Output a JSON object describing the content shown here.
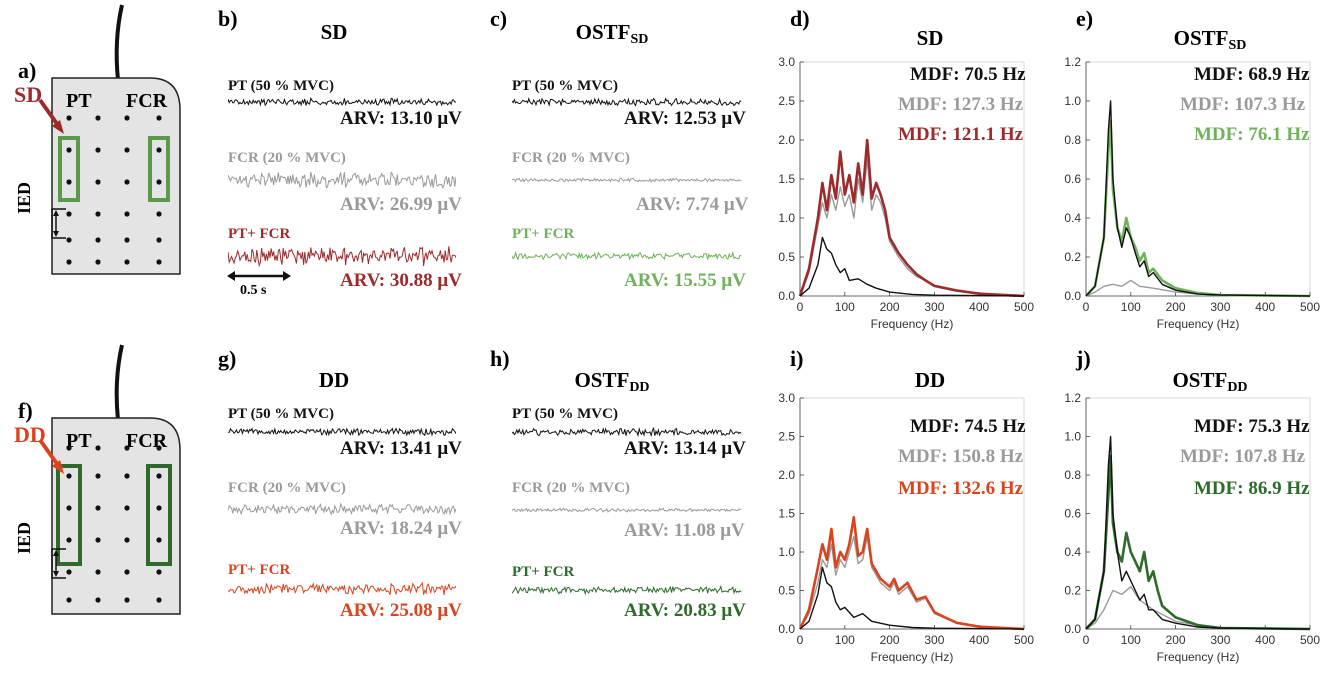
{
  "colors": {
    "black": "#111111",
    "gray": "#9a9a9a",
    "sd_red": "#9e2a2b",
    "dd_orange": "#d9441f",
    "ostf_sd_green": "#6fb25a",
    "ostf_dd_green": "#2d6b2a",
    "electrode_green": "#5a9a4a",
    "electrode_dark_green": "#2f6a2a"
  },
  "panels": {
    "a": {
      "label": "a)",
      "method": "SD",
      "muscle_left": "PT",
      "muscle_right": "FCR",
      "ied": "IED"
    },
    "f": {
      "label": "f)",
      "method": "DD",
      "muscle_left": "PT",
      "muscle_right": "FCR",
      "ied": "IED"
    },
    "b": {
      "label": "b)",
      "title": "SD",
      "pt_label": "PT (50 % MVC)",
      "pt_arv": "ARV: 13.10 μV",
      "fcr_label": "FCR (20 % MVC)",
      "fcr_arv": "ARV: 26.99 μV",
      "mix_label": "PT+ FCR",
      "mix_arv": "ARV: 30.88 μV",
      "scale": "0.5 s"
    },
    "c": {
      "label": "c)",
      "title_main": "OSTF",
      "title_sub": "SD",
      "pt_label": "PT (50 % MVC)",
      "pt_arv": "ARV: 12.53 μV",
      "fcr_label": "FCR (20 % MVC)",
      "fcr_arv": "ARV: 7.74 μV",
      "mix_label": "PT+ FCR",
      "mix_arv": "ARV: 15.55 μV"
    },
    "g": {
      "label": "g)",
      "title": "DD",
      "pt_label": "PT (50 % MVC)",
      "pt_arv": "ARV: 13.41 μV",
      "fcr_label": "FCR (20 % MVC)",
      "fcr_arv": "ARV: 18.24 μV",
      "mix_label": "PT+ FCR",
      "mix_arv": "ARV: 25.08 μV"
    },
    "h": {
      "label": "h)",
      "title_main": "OSTF",
      "title_sub": "DD",
      "pt_label": "PT (50 % MVC)",
      "pt_arv": "ARV: 13.14 μV",
      "fcr_label": "FCR (20 % MVC)",
      "fcr_arv": "ARV: 11.08 μV",
      "mix_label": "PT+ FCR",
      "mix_arv": "ARV: 20.83 μV"
    },
    "d": {
      "label": "d)",
      "title": "SD",
      "mdf1": "MDF: 70.5 Hz",
      "mdf2": "MDF: 127.3 Hz",
      "mdf3": "MDF: 121.1 Hz"
    },
    "e": {
      "label": "e)",
      "title_main": "OSTF",
      "title_sub": "SD",
      "mdf1": "MDF: 68.9 Hz",
      "mdf2": "MDF: 107.3 Hz",
      "mdf3": "MDF: 76.1 Hz"
    },
    "i": {
      "label": "i)",
      "title": "DD",
      "mdf1": "MDF: 74.5 Hz",
      "mdf2": "MDF: 150.8 Hz",
      "mdf3": "MDF: 132.6 Hz"
    },
    "j": {
      "label": "j)",
      "title_main": "OSTF",
      "title_sub": "DD",
      "mdf1": "MDF: 75.3 Hz",
      "mdf2": "MDF: 107.8 Hz",
      "mdf3": "MDF: 86.9 Hz"
    }
  },
  "chart_data": [
    {
      "id": "d",
      "type": "line",
      "xlabel": "Frequency (Hz)",
      "ylabel": "",
      "xlim": [
        0,
        500
      ],
      "ylim": [
        0,
        3.0
      ],
      "xticks": [
        "0",
        "100",
        "200",
        "300",
        "400",
        "500"
      ],
      "yticks": [
        "0.0",
        "0.5",
        "1.0",
        "1.5",
        "2.0",
        "2.5",
        "3.0"
      ],
      "series": [
        {
          "color": "#111111",
          "x": [
            0,
            20,
            40,
            50,
            60,
            70,
            80,
            90,
            100,
            110,
            130,
            150,
            170,
            200,
            250,
            300,
            500
          ],
          "y": [
            0,
            0.1,
            0.4,
            0.75,
            0.6,
            0.55,
            0.4,
            0.3,
            0.35,
            0.2,
            0.22,
            0.15,
            0.1,
            0.05,
            0.02,
            0.01,
            0
          ]
        },
        {
          "color": "#9a9a9a",
          "x": [
            0,
            20,
            40,
            50,
            60,
            70,
            80,
            90,
            100,
            110,
            120,
            130,
            140,
            150,
            160,
            170,
            180,
            190,
            200,
            210,
            220,
            240,
            260,
            280,
            300,
            350,
            400,
            500
          ],
          "y": [
            0,
            0.3,
            0.9,
            1.2,
            1.0,
            1.3,
            1.1,
            1.4,
            1.15,
            1.3,
            1.0,
            1.5,
            1.2,
            1.75,
            1.1,
            1.3,
            1.2,
            1.0,
            0.7,
            0.6,
            0.5,
            0.35,
            0.25,
            0.2,
            0.12,
            0.06,
            0.03,
            0
          ]
        },
        {
          "color": "#9e2a2b",
          "x": [
            0,
            20,
            40,
            50,
            60,
            70,
            80,
            90,
            100,
            110,
            120,
            130,
            140,
            150,
            160,
            170,
            180,
            190,
            200,
            210,
            220,
            240,
            260,
            280,
            300,
            350,
            400,
            500
          ],
          "y": [
            0,
            0.35,
            1.0,
            1.45,
            1.1,
            1.55,
            1.25,
            1.85,
            1.3,
            1.55,
            1.2,
            1.7,
            1.3,
            2.0,
            1.25,
            1.45,
            1.3,
            1.1,
            0.75,
            0.65,
            0.55,
            0.4,
            0.28,
            0.2,
            0.13,
            0.07,
            0.03,
            0
          ]
        }
      ]
    },
    {
      "id": "e",
      "type": "line",
      "xlabel": "Frequency (Hz)",
      "ylabel": "",
      "xlim": [
        0,
        500
      ],
      "ylim": [
        0,
        1.2
      ],
      "xticks": [
        "0",
        "100",
        "200",
        "300",
        "400",
        "500"
      ],
      "yticks": [
        "0.0",
        "0.2",
        "0.4",
        "0.6",
        "0.8",
        "1.0",
        "1.2"
      ],
      "series": [
        {
          "color": "#111111",
          "x": [
            0,
            20,
            40,
            50,
            55,
            60,
            70,
            80,
            90,
            100,
            110,
            120,
            130,
            140,
            150,
            170,
            200,
            250,
            300,
            500
          ],
          "y": [
            0,
            0.05,
            0.3,
            0.85,
            1.0,
            0.6,
            0.35,
            0.25,
            0.35,
            0.3,
            0.22,
            0.15,
            0.18,
            0.1,
            0.12,
            0.06,
            0.03,
            0.01,
            0.005,
            0
          ]
        },
        {
          "color": "#9a9a9a",
          "x": [
            0,
            20,
            40,
            60,
            80,
            100,
            120,
            150,
            200,
            250,
            300,
            500
          ],
          "y": [
            0,
            0.02,
            0.05,
            0.06,
            0.05,
            0.08,
            0.05,
            0.04,
            0.02,
            0.01,
            0.005,
            0
          ]
        },
        {
          "color": "#6fb25a",
          "x": [
            0,
            20,
            40,
            50,
            55,
            60,
            70,
            80,
            90,
            100,
            110,
            120,
            130,
            140,
            150,
            170,
            200,
            250,
            300,
            500
          ],
          "y": [
            0,
            0.05,
            0.3,
            0.75,
            0.9,
            0.55,
            0.35,
            0.28,
            0.4,
            0.3,
            0.25,
            0.18,
            0.22,
            0.12,
            0.14,
            0.08,
            0.04,
            0.015,
            0.005,
            0
          ]
        }
      ]
    },
    {
      "id": "i",
      "type": "line",
      "xlabel": "Frequency (Hz)",
      "ylabel": "",
      "xlim": [
        0,
        500
      ],
      "ylim": [
        0,
        3.0
      ],
      "xticks": [
        "0",
        "100",
        "200",
        "300",
        "400",
        "500"
      ],
      "yticks": [
        "0.0",
        "0.5",
        "1.0",
        "1.5",
        "2.0",
        "2.5",
        "3.0"
      ],
      "series": [
        {
          "color": "#111111",
          "x": [
            0,
            20,
            40,
            50,
            60,
            70,
            80,
            90,
            100,
            120,
            140,
            160,
            200,
            250,
            300,
            500
          ],
          "y": [
            0,
            0.1,
            0.45,
            0.8,
            0.6,
            0.55,
            0.35,
            0.25,
            0.28,
            0.15,
            0.2,
            0.1,
            0.05,
            0.02,
            0.01,
            0
          ]
        },
        {
          "color": "#9a9a9a",
          "x": [
            0,
            20,
            40,
            50,
            60,
            70,
            80,
            90,
            100,
            110,
            120,
            130,
            140,
            150,
            160,
            170,
            180,
            190,
            200,
            210,
            220,
            240,
            260,
            280,
            300,
            320,
            350,
            400,
            500
          ],
          "y": [
            0,
            0.2,
            0.6,
            0.9,
            0.8,
            1.1,
            0.7,
            0.9,
            0.8,
            1.0,
            1.2,
            0.85,
            0.9,
            1.2,
            0.8,
            0.7,
            0.6,
            0.55,
            0.5,
            0.6,
            0.45,
            0.55,
            0.35,
            0.4,
            0.2,
            0.15,
            0.08,
            0.03,
            0
          ]
        },
        {
          "color": "#d9441f",
          "x": [
            0,
            20,
            40,
            50,
            60,
            70,
            80,
            90,
            100,
            110,
            120,
            130,
            140,
            150,
            160,
            170,
            180,
            190,
            200,
            210,
            220,
            240,
            260,
            280,
            300,
            320,
            350,
            400,
            500
          ],
          "y": [
            0,
            0.25,
            0.8,
            1.1,
            0.9,
            1.3,
            0.8,
            1.0,
            0.9,
            1.1,
            1.45,
            0.95,
            1.0,
            1.3,
            0.85,
            0.75,
            0.65,
            0.6,
            0.55,
            0.65,
            0.5,
            0.6,
            0.38,
            0.42,
            0.22,
            0.16,
            0.08,
            0.03,
            0
          ]
        }
      ]
    },
    {
      "id": "j",
      "type": "line",
      "xlabel": "Frequency (Hz)",
      "ylabel": "",
      "xlim": [
        0,
        500
      ],
      "ylim": [
        0,
        1.2
      ],
      "xticks": [
        "0",
        "100",
        "200",
        "300",
        "400",
        "500"
      ],
      "yticks": [
        "0.0",
        "0.2",
        "0.4",
        "0.6",
        "0.8",
        "1.0",
        "1.2"
      ],
      "series": [
        {
          "color": "#111111",
          "x": [
            0,
            20,
            40,
            50,
            55,
            60,
            70,
            80,
            90,
            100,
            110,
            120,
            130,
            140,
            150,
            170,
            200,
            250,
            300,
            500
          ],
          "y": [
            0,
            0.05,
            0.3,
            0.85,
            1.0,
            0.6,
            0.4,
            0.25,
            0.3,
            0.25,
            0.2,
            0.15,
            0.18,
            0.1,
            0.1,
            0.05,
            0.03,
            0.01,
            0.005,
            0
          ]
        },
        {
          "color": "#9a9a9a",
          "x": [
            0,
            20,
            40,
            60,
            80,
            100,
            120,
            150,
            200,
            250,
            300,
            500
          ],
          "y": [
            0,
            0.03,
            0.1,
            0.2,
            0.18,
            0.22,
            0.15,
            0.1,
            0.04,
            0.02,
            0.005,
            0
          ]
        },
        {
          "color": "#2d6b2a",
          "x": [
            0,
            20,
            40,
            50,
            55,
            60,
            70,
            80,
            90,
            100,
            110,
            120,
            130,
            140,
            150,
            160,
            170,
            200,
            250,
            300,
            500
          ],
          "y": [
            0,
            0.05,
            0.3,
            0.7,
            0.9,
            0.55,
            0.4,
            0.35,
            0.5,
            0.4,
            0.35,
            0.3,
            0.4,
            0.25,
            0.3,
            0.2,
            0.12,
            0.06,
            0.02,
            0.005,
            0
          ]
        }
      ]
    }
  ]
}
